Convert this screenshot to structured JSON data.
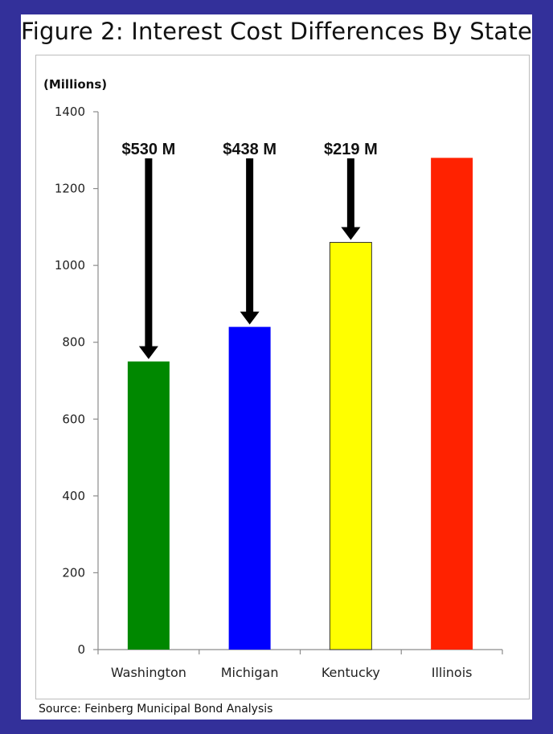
{
  "title": "Figure 2: Interest Cost Differences By State",
  "source": "Source: Feinberg Municipal Bond Analysis",
  "chart_data": {
    "type": "bar",
    "unit_label": "(Millions)",
    "categories": [
      "Washington",
      "Michigan",
      "Kentucky",
      "Illinois"
    ],
    "values": [
      750,
      840,
      1060,
      1280
    ],
    "colors": [
      "#008800",
      "#0000ff",
      "#ffff00",
      "#ff2200"
    ],
    "annotations": [
      {
        "category": "Washington",
        "text": "$530 M"
      },
      {
        "category": "Michigan",
        "text": "$438 M"
      },
      {
        "category": "Kentucky",
        "text": "$219 M"
      }
    ],
    "ylim": [
      0,
      1400
    ],
    "yticks": [
      0,
      200,
      400,
      600,
      800,
      1000,
      1200,
      1400
    ],
    "grid": false,
    "legend": "none"
  }
}
